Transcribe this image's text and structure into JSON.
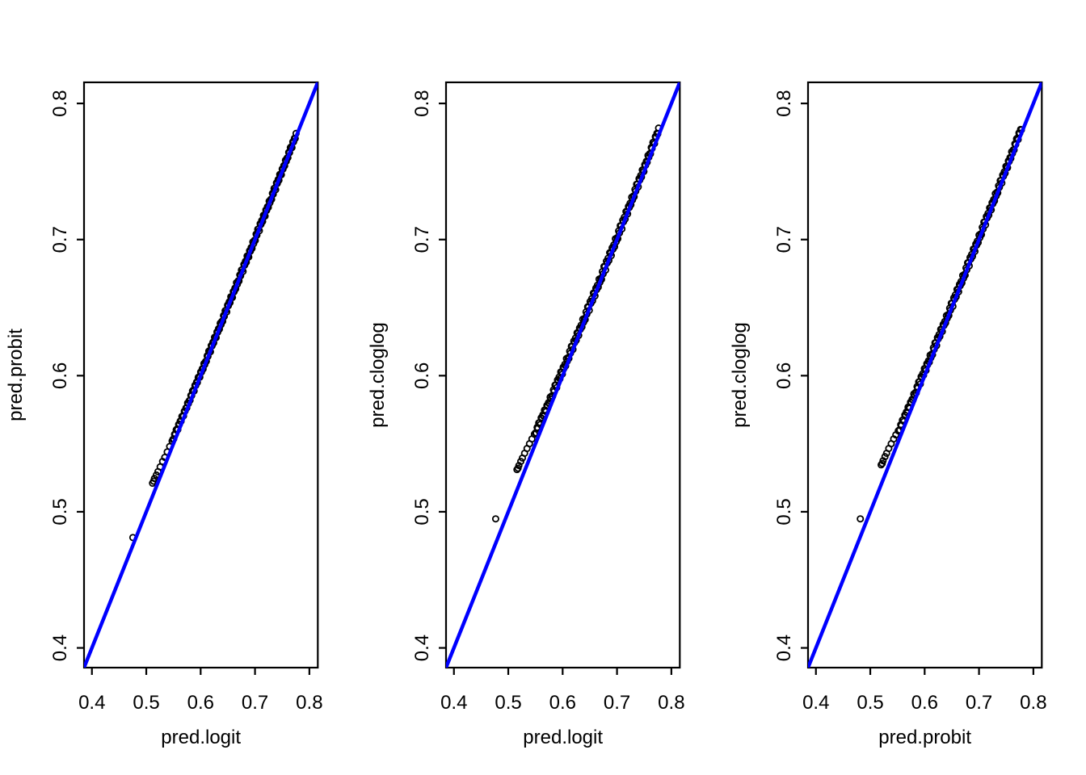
{
  "figure": {
    "background": "#FFFFFF",
    "panel_count": 3
  },
  "style": {
    "axis_color": "#000000",
    "point_color": "#000000",
    "identity_line_color": "#0000FF",
    "point_shape": "open-circle"
  },
  "chart_data": [
    {
      "type": "scatter",
      "xlabel": "pred.logit",
      "ylabel": "pred.probit",
      "x_tick_labels": [
        "0.4",
        "0.5",
        "0.6",
        "0.7",
        "0.8"
      ],
      "y_tick_labels": [
        "0.4",
        "0.5",
        "0.6",
        "0.7",
        "0.8"
      ],
      "x_ticks": [
        0.4,
        0.5,
        0.6,
        0.7,
        0.8
      ],
      "y_ticks": [
        0.4,
        0.5,
        0.6,
        0.7,
        0.8
      ],
      "xlim": [
        0.3855,
        0.8155
      ],
      "ylim": [
        0.3855,
        0.8155
      ],
      "grid": false,
      "identity_line": {
        "intercept": 0,
        "slope": 1,
        "color": "#0000FF"
      },
      "cluster_description": "dense overplotted band of open circles lying almost exactly on the y=x line from ~0.55 to ~0.78, slightly above the line at the low end",
      "points": {
        "outlier": [
          0.4753,
          0.4811
        ],
        "low_tail": [
          [
            0.5115,
            0.521
          ],
          [
            0.5135,
            0.5225
          ],
          [
            0.515,
            0.5245
          ],
          [
            0.5185,
            0.527
          ],
          [
            0.5215,
            0.5295
          ],
          [
            0.5255,
            0.533
          ],
          [
            0.53,
            0.537
          ],
          [
            0.534,
            0.54
          ],
          [
            0.5385,
            0.544
          ],
          [
            0.543,
            0.548
          ],
          [
            0.5475,
            0.552
          ]
        ],
        "dense_band": {
          "x_start": 0.549,
          "x_end": 0.7765,
          "step": 0.0015,
          "profile": [
            [
              0.549,
              0.0042,
              0.0013
            ],
            [
              0.575,
              0.0028,
              0.0014
            ],
            [
              0.605,
              0.0015,
              0.0016
            ],
            [
              0.645,
              0.0008,
              0.0019
            ],
            [
              0.695,
              0.0005,
              0.0021
            ],
            [
              0.74,
              0.0006,
              0.0019
            ],
            [
              0.7765,
              0.0012,
              0.0014
            ]
          ]
        }
      }
    },
    {
      "type": "scatter",
      "xlabel": "pred.logit",
      "ylabel": "pred.cloglog",
      "x_tick_labels": [
        "0.4",
        "0.5",
        "0.6",
        "0.7",
        "0.8"
      ],
      "y_tick_labels": [
        "0.4",
        "0.5",
        "0.6",
        "0.7",
        "0.8"
      ],
      "x_ticks": [
        0.4,
        0.5,
        0.6,
        0.7,
        0.8
      ],
      "y_ticks": [
        0.4,
        0.5,
        0.6,
        0.7,
        0.8
      ],
      "xlim": [
        0.3855,
        0.8155
      ],
      "ylim": [
        0.3855,
        0.8155
      ],
      "grid": false,
      "identity_line": {
        "intercept": 0,
        "slope": 1,
        "color": "#0000FF"
      },
      "cluster_description": "dense overplotted band of open circles along y=x from ~0.55 to ~0.78, sitting above the line at the low end and slightly above at the top",
      "points": {
        "outlier": [
          0.4768,
          0.4948
        ],
        "low_tail": [
          [
            0.516,
            0.531
          ],
          [
            0.518,
            0.532
          ],
          [
            0.5195,
            0.534
          ],
          [
            0.523,
            0.537
          ],
          [
            0.526,
            0.5395
          ],
          [
            0.53,
            0.543
          ],
          [
            0.5345,
            0.5465
          ],
          [
            0.539,
            0.55
          ],
          [
            0.5435,
            0.5535
          ],
          [
            0.548,
            0.557
          ]
        ],
        "dense_band": {
          "x_start": 0.55,
          "x_end": 0.777,
          "step": 0.0015,
          "profile": [
            [
              0.55,
              0.008,
              0.0018
            ],
            [
              0.575,
              0.0055,
              0.0022
            ],
            [
              0.605,
              0.0035,
              0.0025
            ],
            [
              0.645,
              0.0018,
              0.0028
            ],
            [
              0.695,
              0.0012,
              0.0028
            ],
            [
              0.74,
              0.0022,
              0.0025
            ],
            [
              0.777,
              0.0038,
              0.0018
            ]
          ]
        }
      }
    },
    {
      "type": "scatter",
      "xlabel": "pred.probit",
      "ylabel": "pred.cloglog",
      "x_tick_labels": [
        "0.4",
        "0.5",
        "0.6",
        "0.7",
        "0.8"
      ],
      "y_tick_labels": [
        "0.4",
        "0.5",
        "0.6",
        "0.7",
        "0.8"
      ],
      "x_ticks": [
        0.4,
        0.5,
        0.6,
        0.7,
        0.8
      ],
      "y_ticks": [
        0.4,
        0.5,
        0.6,
        0.7,
        0.8
      ],
      "xlim": [
        0.3855,
        0.8155
      ],
      "ylim": [
        0.3855,
        0.8155
      ],
      "grid": false,
      "identity_line": {
        "intercept": 0,
        "slope": 1,
        "color": "#0000FF"
      },
      "cluster_description": "dense overplotted band of open circles along y=x from ~0.55 to ~0.78, sitting above the line at the low end and slightly above at the top",
      "points": {
        "outlier": [
          0.4817,
          0.4948
        ],
        "low_tail": [
          [
            0.52,
            0.5345
          ],
          [
            0.522,
            0.5355
          ],
          [
            0.5235,
            0.5375
          ],
          [
            0.527,
            0.5405
          ],
          [
            0.53,
            0.543
          ],
          [
            0.534,
            0.5465
          ],
          [
            0.5385,
            0.55
          ],
          [
            0.543,
            0.5535
          ],
          [
            0.547,
            0.5565
          ],
          [
            0.5515,
            0.5595
          ]
        ],
        "dense_band": {
          "x_start": 0.553,
          "x_end": 0.778,
          "step": 0.0015,
          "profile": [
            [
              0.553,
              0.007,
              0.0017
            ],
            [
              0.58,
              0.0048,
              0.0021
            ],
            [
              0.61,
              0.003,
              0.0024
            ],
            [
              0.65,
              0.0016,
              0.0026
            ],
            [
              0.7,
              0.0011,
              0.0026
            ],
            [
              0.745,
              0.002,
              0.0024
            ],
            [
              0.778,
              0.0036,
              0.0017
            ]
          ]
        }
      }
    }
  ]
}
